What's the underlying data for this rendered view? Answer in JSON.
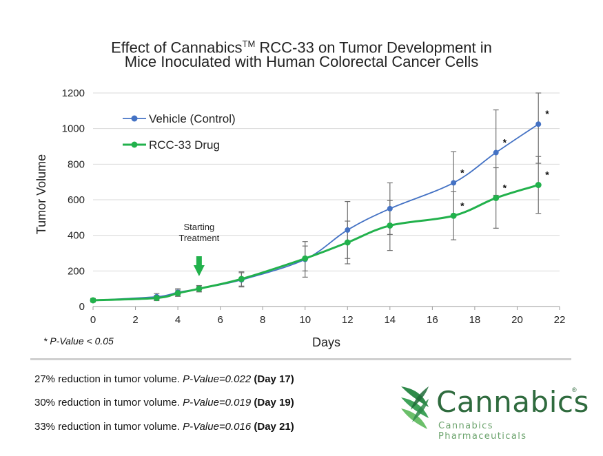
{
  "chart_data": {
    "type": "line",
    "title_line1_pre": "Effect of Cannabics",
    "title_sup": "TM",
    "title_line1_post": " RCC-33 on Tumor  Development in",
    "title_line2": "Mice Inoculated with Human Colorectal Cancer Cells",
    "xlabel": "Days",
    "ylabel": "Tumor Volume",
    "xlim": [
      0,
      22
    ],
    "ylim": [
      0,
      1200
    ],
    "xticks": [
      "0",
      "2",
      "4",
      "6",
      "8",
      "10",
      "12",
      "14",
      "16",
      "18",
      "20",
      "22"
    ],
    "yticks": [
      "0",
      "200",
      "400",
      "600",
      "800",
      "1000",
      "1200"
    ],
    "grid": "horizontal",
    "legend_position": "top-left",
    "annotation": "Starting\nTreatment",
    "annotation_day": 5,
    "significance_marker": "*",
    "series": [
      {
        "name": "Vehicle (Control)",
        "color": "#4472c4",
        "x": [
          0,
          3,
          4,
          5,
          7,
          10,
          12,
          14,
          17,
          19,
          21
        ],
        "y": [
          35,
          55,
          80,
          100,
          150,
          265,
          430,
          550,
          695,
          865,
          1025
        ],
        "error": [
          10,
          18,
          20,
          18,
          40,
          100,
          160,
          145,
          175,
          240,
          220
        ],
        "significant": [
          false,
          false,
          false,
          false,
          false,
          false,
          false,
          false,
          true,
          true,
          true
        ]
      },
      {
        "name": "RCC-33 Drug",
        "color": "#22b14c",
        "x": [
          0,
          3,
          4,
          5,
          7,
          10,
          12,
          14,
          17,
          19,
          21
        ],
        "y": [
          35,
          48,
          75,
          100,
          155,
          270,
          360,
          455,
          510,
          610,
          683
        ],
        "error": [
          8,
          15,
          18,
          15,
          40,
          70,
          120,
          140,
          135,
          170,
          160
        ],
        "significant": [
          false,
          false,
          false,
          false,
          false,
          false,
          false,
          false,
          true,
          true,
          true
        ]
      }
    ]
  },
  "footnote": "* P-Value < 0.05",
  "stats": [
    {
      "text": "27% reduction in tumor volume. ",
      "pvalue": "P-Value=0.022",
      "day": " (Day 17)"
    },
    {
      "text": "30% reduction in tumor volume. ",
      "pvalue": "P-Value=0.019",
      "day": " (Day 19)"
    },
    {
      "text": "33% reduction in tumor volume. ",
      "pvalue": "P-Value=0.016",
      "day": " (Day 21)"
    }
  ],
  "logo": {
    "name": "Cannabics",
    "registered": "®",
    "subtitle": "Cannabics Pharmaceuticals"
  }
}
